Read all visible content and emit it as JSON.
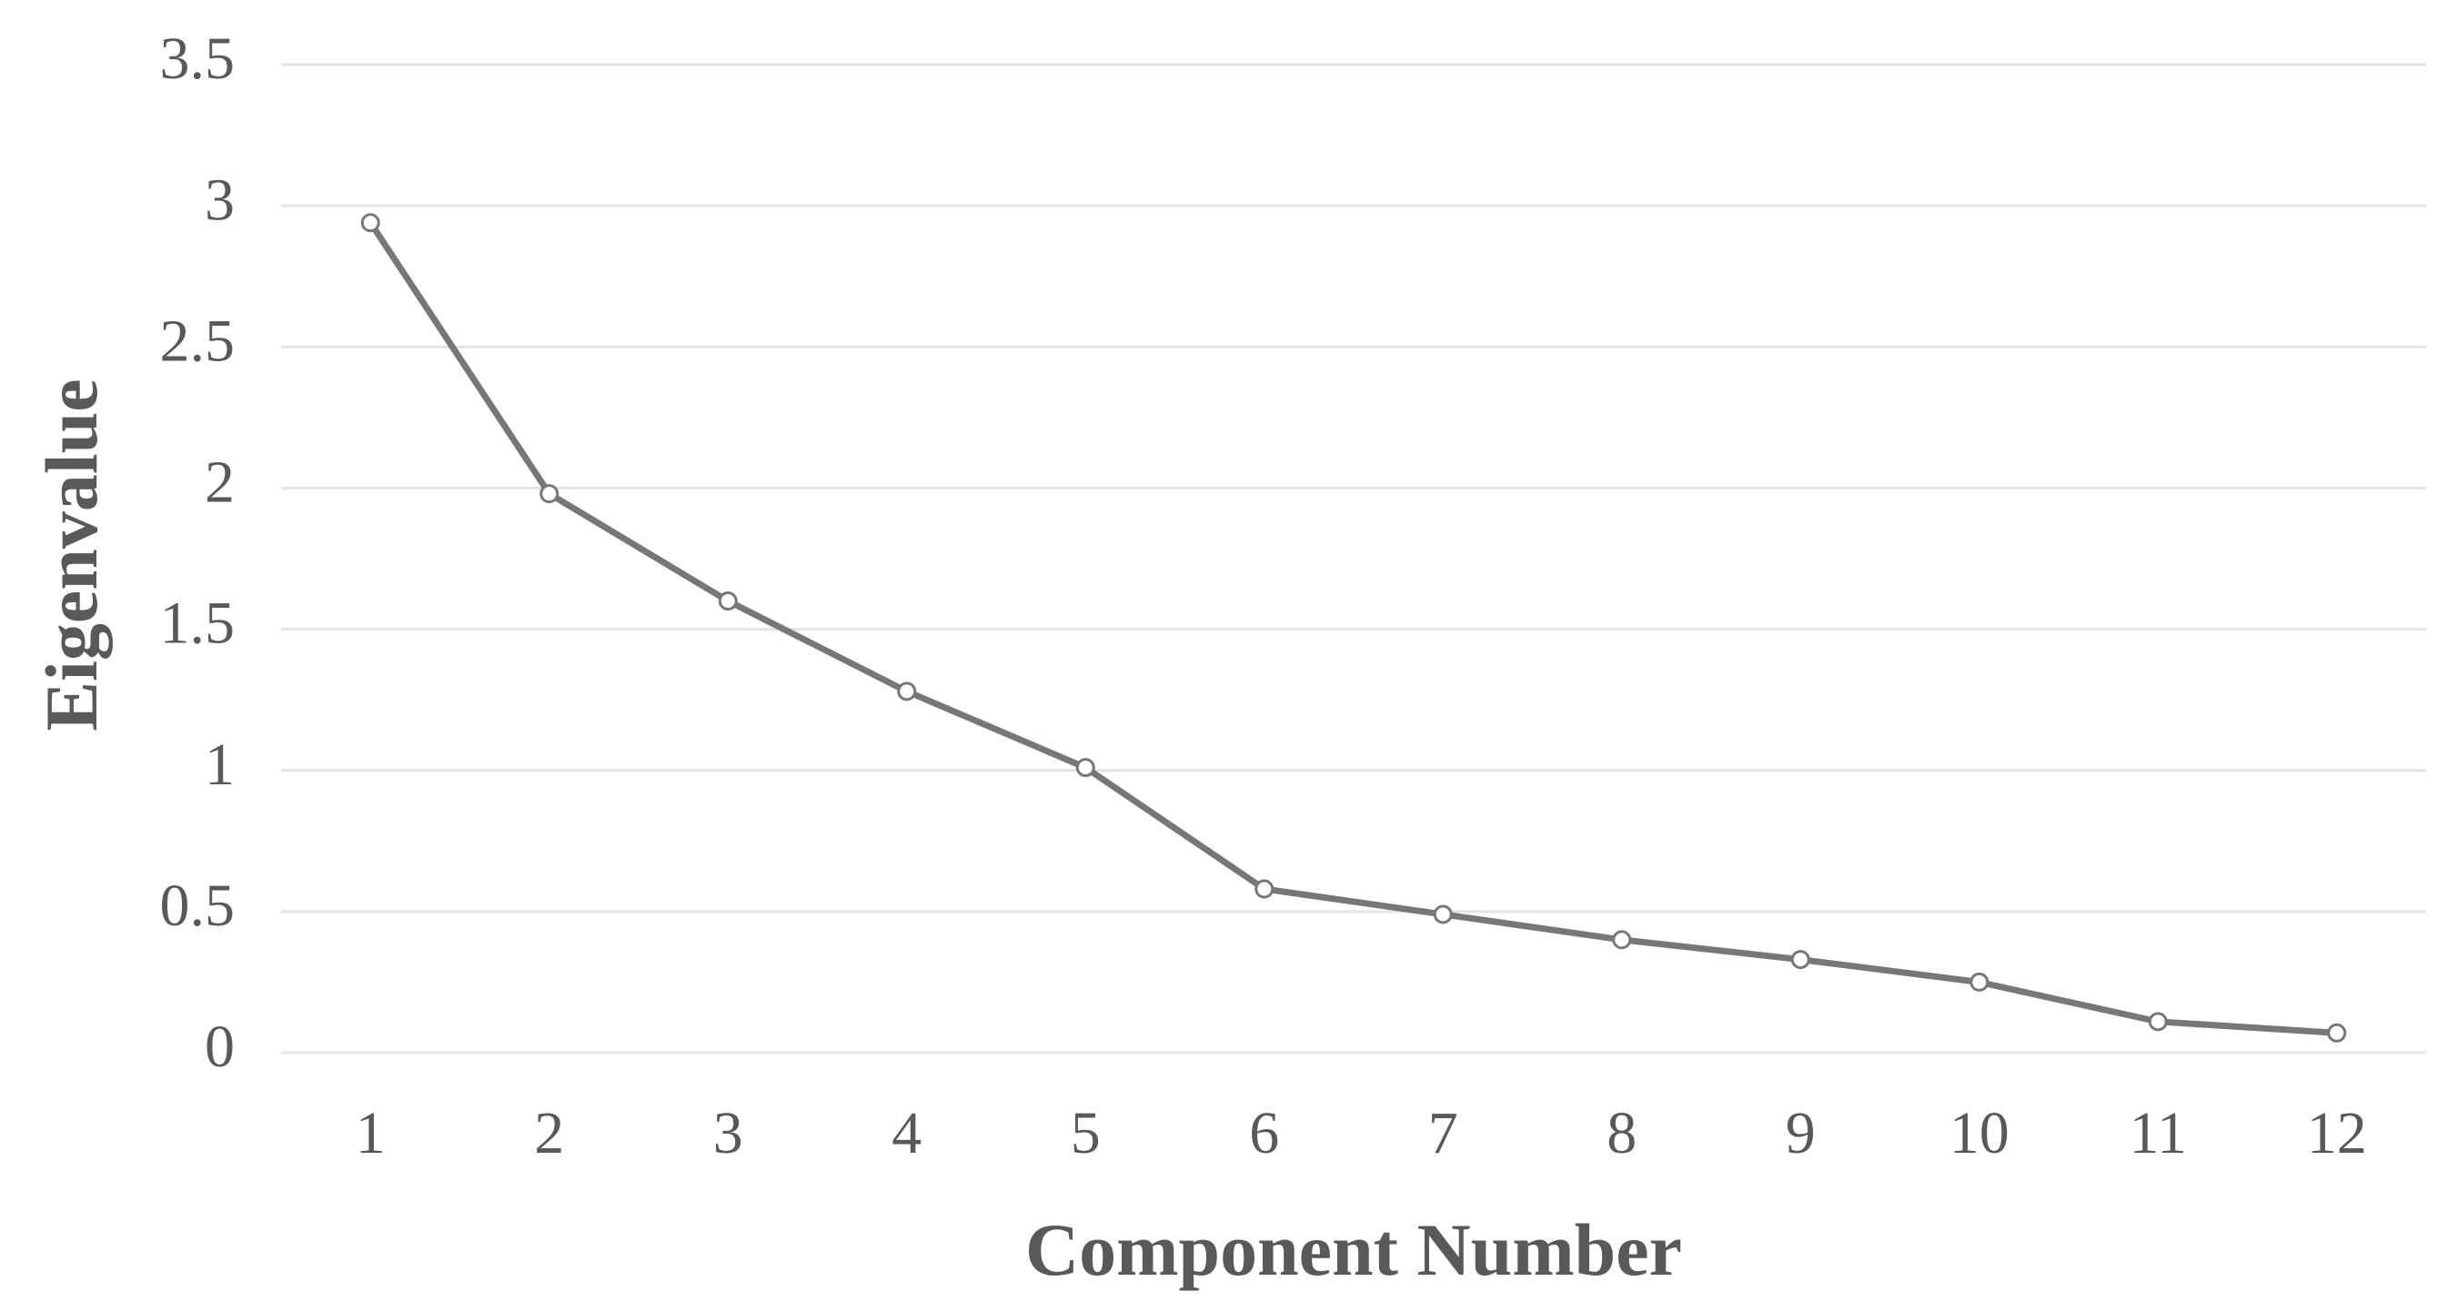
{
  "chart_data": {
    "type": "line",
    "x_label": "Component Number",
    "y_label": "Eigenvalue",
    "categories": [
      1,
      2,
      3,
      4,
      5,
      6,
      7,
      8,
      9,
      10,
      11,
      12
    ],
    "values": [
      2.94,
      1.98,
      1.6,
      1.28,
      1.01,
      0.58,
      0.49,
      0.4,
      0.33,
      0.25,
      0.11,
      0.07
    ],
    "color": "#777777",
    "ylim": [
      0,
      3.5
    ],
    "yticks": [
      0,
      0.5,
      1,
      1.5,
      2,
      2.5,
      3,
      3.5
    ],
    "grid": true
  }
}
